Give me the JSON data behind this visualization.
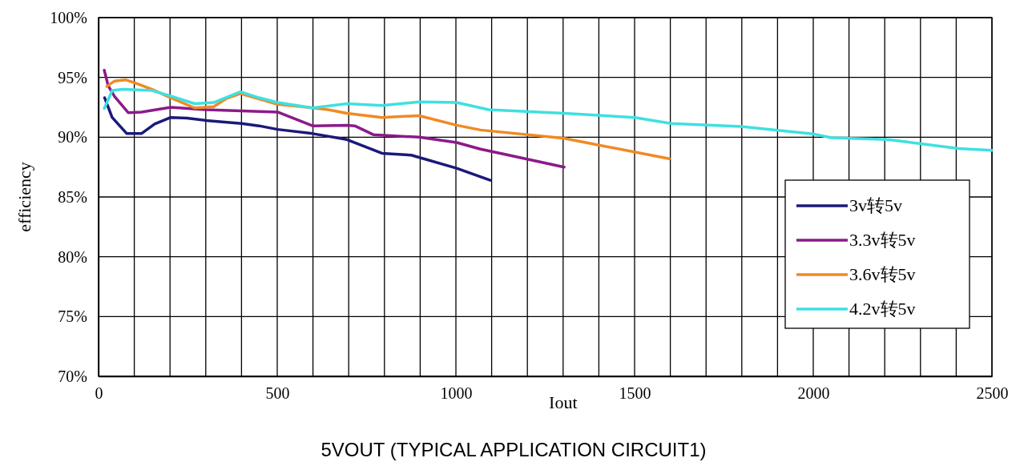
{
  "chart_data": {
    "type": "line",
    "title": "5VOUT (TYPICAL APPLICATION CIRCUIT1)",
    "xlabel": "Iout",
    "ylabel": "efficiency",
    "xlim": [
      0,
      2500
    ],
    "xticks": [
      0,
      {
        "value": 100,
        "label": null
      },
      {
        "value": 200,
        "label": null
      },
      {
        "value": 300,
        "label": null
      },
      {
        "value": 400,
        "label": null
      },
      500,
      {
        "value": 600,
        "label": null
      },
      {
        "value": 700,
        "label": null
      },
      {
        "value": 800,
        "label": null
      },
      {
        "value": 900,
        "label": null
      },
      1000,
      {
        "value": 1100,
        "label": null
      },
      {
        "value": 1200,
        "label": null
      },
      {
        "value": 1300,
        "label": null
      },
      {
        "value": 1400,
        "label": null
      },
      1500,
      {
        "value": 1600,
        "label": null
      },
      {
        "value": 1700,
        "label": null
      },
      {
        "value": 1800,
        "label": null
      },
      {
        "value": 1900,
        "label": null
      },
      2000,
      {
        "value": 2100,
        "label": null
      },
      {
        "value": 2200,
        "label": null
      },
      {
        "value": 2300,
        "label": null
      },
      {
        "value": 2400,
        "label": null
      },
      2500
    ],
    "ylim": [
      70,
      100
    ],
    "yticks": [
      {
        "value": 70,
        "label": "70%"
      },
      {
        "value": 75,
        "label": "75%"
      },
      {
        "value": 80,
        "label": "80%"
      },
      {
        "value": 85,
        "label": "85%"
      },
      {
        "value": 90,
        "label": "90%"
      },
      {
        "value": 95,
        "label": "95%"
      },
      {
        "value": 100,
        "label": "100%"
      }
    ],
    "grid": true,
    "legend": "bottom right",
    "marker": "none",
    "line_style": "solid",
    "series": [
      {
        "name": "3v转5v",
        "color": "#1a1a7a",
        "x": [
          17,
          38,
          79,
          120,
          157,
          202,
          247,
          300,
          400,
          449,
          501,
          599,
          695,
          793,
          875,
          1002,
          1096
        ],
        "values": [
          93.3,
          91.65,
          90.3,
          90.3,
          91.1,
          91.65,
          91.6,
          91.4,
          91.15,
          90.95,
          90.65,
          90.3,
          89.8,
          88.65,
          88.5,
          87.4,
          86.4
        ]
      },
      {
        "name": "3.3v转5v",
        "color": "#8b1a8b",
        "x": [
          16,
          27,
          45,
          83,
          120,
          202,
          300,
          400,
          501,
          599,
          695,
          717,
          770,
          897,
          1002,
          1069,
          1132,
          1303
        ],
        "values": [
          95.6,
          94.3,
          93.4,
          92.05,
          92.1,
          92.5,
          92.3,
          92.2,
          92.1,
          90.95,
          91.0,
          90.95,
          90.2,
          90.0,
          89.55,
          89.0,
          88.6,
          87.5
        ]
      },
      {
        "name": "3.6v转5v",
        "color": "#f08a24",
        "x": [
          23,
          45,
          75,
          101,
          150,
          202,
          269,
          322,
          359,
          397,
          449,
          501,
          569,
          643,
          695,
          793,
          897,
          1002,
          1069,
          1303,
          1597
        ],
        "values": [
          94.25,
          94.7,
          94.8,
          94.55,
          94.0,
          93.3,
          92.45,
          92.55,
          93.25,
          93.65,
          93.2,
          92.75,
          92.55,
          92.3,
          92.0,
          91.65,
          91.8,
          91.0,
          90.6,
          89.9,
          88.2
        ]
      },
      {
        "name": "4.2v转5v",
        "color": "#3fe0e0",
        "x": [
          16,
          38,
          68,
          150,
          202,
          269,
          322,
          397,
          449,
          501,
          599,
          695,
          793,
          897,
          1002,
          1092,
          1303,
          1500,
          1602,
          1798,
          2004,
          2050,
          2209,
          2406,
          2500
        ],
        "values": [
          92.4,
          93.9,
          94.0,
          93.9,
          93.45,
          92.8,
          92.9,
          93.8,
          93.3,
          92.9,
          92.45,
          92.8,
          92.65,
          92.95,
          92.9,
          92.3,
          92.0,
          91.65,
          91.15,
          90.9,
          90.25,
          89.95,
          89.8,
          89.05,
          88.9
        ]
      }
    ]
  }
}
